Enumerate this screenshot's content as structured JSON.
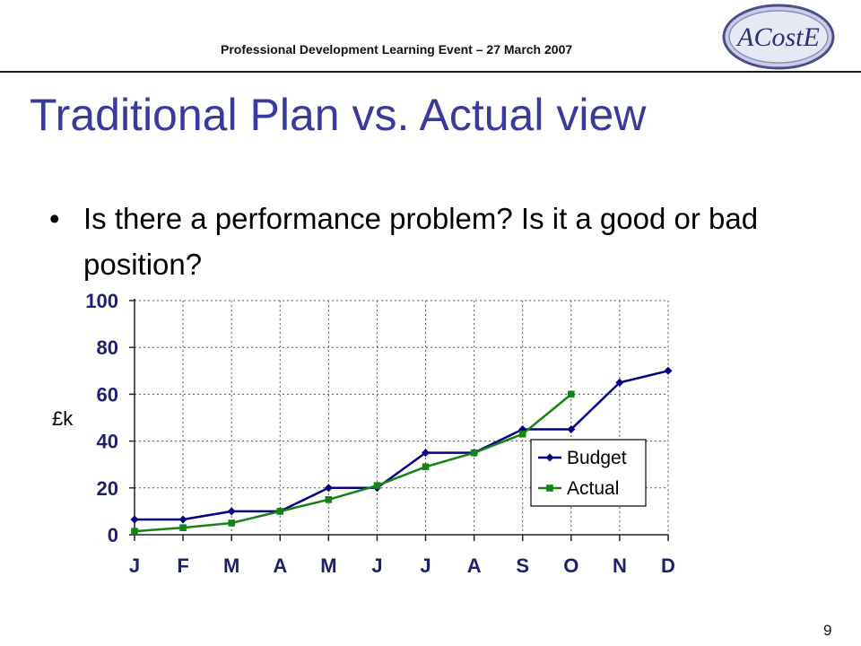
{
  "header": {
    "event": "Professional Development Learning Event – 27 March 2007",
    "logo_text": "ACostE"
  },
  "slide": {
    "title": "Traditional Plan vs. Actual view",
    "bullet": "Is there a performance problem? Is it a good or bad position?",
    "page_number": "9"
  },
  "colors": {
    "title": "#3a3a9e",
    "budget": "#000080",
    "actual": "#148214",
    "tick_text": "#1f1f6e"
  },
  "chart_data": {
    "type": "line",
    "categories": [
      "J",
      "F",
      "M",
      "A",
      "M",
      "J",
      "J",
      "A",
      "S",
      "O",
      "N",
      "D"
    ],
    "ylabel": "£k",
    "ylim": [
      0,
      100
    ],
    "yticks": [
      "0",
      "20",
      "40",
      "60",
      "80",
      "100"
    ],
    "grid": true,
    "legend_position": "bottom-right",
    "series": [
      {
        "name": "Budget",
        "marker": "diamond",
        "values": [
          6.5,
          6.5,
          10,
          10,
          20,
          20,
          35,
          35,
          45,
          45,
          65,
          70
        ]
      },
      {
        "name": "Actual",
        "marker": "square",
        "values": [
          1.5,
          3,
          5,
          10,
          15,
          21,
          29,
          35,
          43,
          60,
          null,
          null
        ]
      }
    ]
  }
}
